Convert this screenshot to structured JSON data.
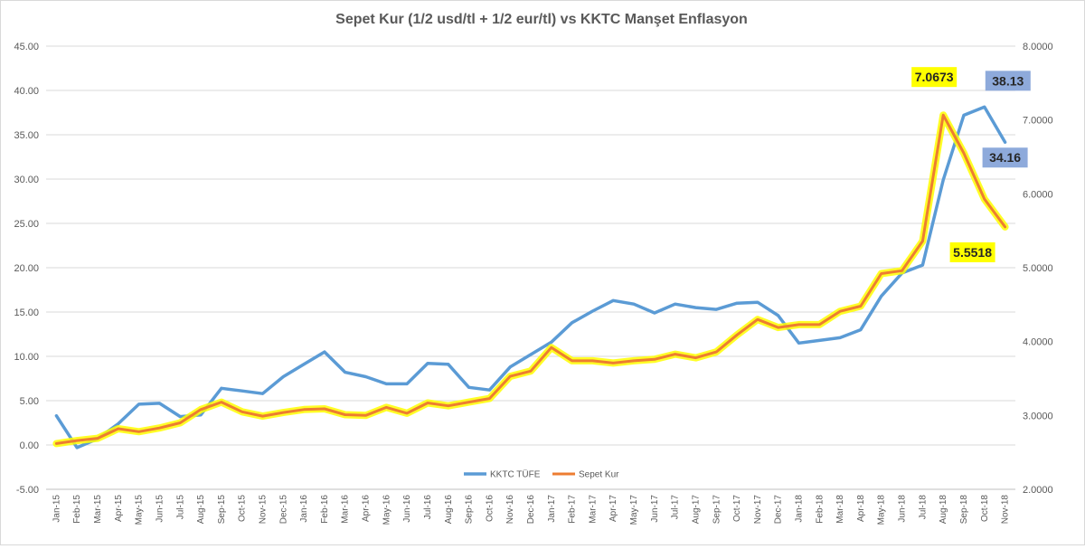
{
  "chart_data": {
    "type": "line",
    "title": "Sepet Kur (1/2 usd/tl + 1/2 eur/tl)  vs  KKTC Manşet Enflasyon",
    "categories": [
      "Jan-15",
      "Feb-15",
      "Mar-15",
      "Apr-15",
      "May-15",
      "Jun-15",
      "Jul-15",
      "Aug-15",
      "Sep-15",
      "Oct-15",
      "Nov-15",
      "Dec-15",
      "Jan-16",
      "Feb-16",
      "Mar-16",
      "Apr-16",
      "May-16",
      "Jun-16",
      "Jul-16",
      "Aug-16",
      "Sep-16",
      "Oct-16",
      "Nov-16",
      "Dec-16",
      "Jan-17",
      "Feb-17",
      "Mar-17",
      "Apr-17",
      "May-17",
      "Jun-17",
      "Jul-17",
      "Aug-17",
      "Sep-17",
      "Oct-17",
      "Nov-17",
      "Dec-17",
      "Jan-18",
      "Feb-18",
      "Mar-18",
      "Apr-18",
      "May-18",
      "Jun-18",
      "Jul-18",
      "Aug-18",
      "Sep-18",
      "Oct-18",
      "Nov-18"
    ],
    "y_left": {
      "min": -5,
      "max": 45,
      "step": 5,
      "tick_labels": [
        "-5.00",
        "0.00",
        "5.00",
        "10.00",
        "15.00",
        "20.00",
        "25.00",
        "30.00",
        "35.00",
        "40.00",
        "45.00"
      ]
    },
    "y_right": {
      "min": 2,
      "max": 8,
      "step": 1,
      "tick_labels": [
        "2.0000",
        "3.0000",
        "4.0000",
        "5.0000",
        "6.0000",
        "7.0000",
        "8.0000"
      ]
    },
    "legend_position": "bottom",
    "grid": "horizontal",
    "series": [
      {
        "name": "KKTC TÜFE",
        "axis": "left",
        "color": "#5b9bd5",
        "values": [
          3.3,
          -0.3,
          0.7,
          2.4,
          4.6,
          4.7,
          3.2,
          3.4,
          6.4,
          6.1,
          5.8,
          7.7,
          9.1,
          10.5,
          8.2,
          7.7,
          6.9,
          6.9,
          9.2,
          9.1,
          6.5,
          6.2,
          8.8,
          10.2,
          11.6,
          13.8,
          15.1,
          16.3,
          15.9,
          14.9,
          15.9,
          15.5,
          15.3,
          16.0,
          16.1,
          14.6,
          11.5,
          11.8,
          12.1,
          13.0,
          16.8,
          19.4,
          20.3,
          29.9,
          37.2,
          38.13,
          34.16
        ]
      },
      {
        "name": "Sepet Kur",
        "axis": "right",
        "color": "#ed7d31",
        "glow": "#ffff00",
        "values": [
          2.62,
          2.66,
          2.69,
          2.82,
          2.78,
          2.83,
          2.9,
          3.08,
          3.18,
          3.05,
          2.99,
          3.04,
          3.08,
          3.09,
          3.01,
          3.0,
          3.11,
          3.03,
          3.17,
          3.13,
          3.18,
          3.23,
          3.53,
          3.6,
          3.92,
          3.74,
          3.74,
          3.71,
          3.74,
          3.76,
          3.83,
          3.78,
          3.86,
          4.09,
          4.3,
          4.19,
          4.23,
          4.23,
          4.41,
          4.48,
          4.92,
          4.96,
          5.36,
          7.0673,
          6.55,
          5.93,
          5.5518
        ]
      }
    ],
    "annotations": [
      {
        "text": "7.0673",
        "series": 1,
        "index": 43,
        "bg": "#ffff00"
      },
      {
        "text": "5.5518",
        "series": 1,
        "index": 46,
        "bg": "#ffff00"
      },
      {
        "text": "38.13",
        "series": 0,
        "index": 45,
        "bg": "#8eaadb"
      },
      {
        "text": "34.16",
        "series": 0,
        "index": 46,
        "bg": "#8eaadb"
      }
    ]
  }
}
